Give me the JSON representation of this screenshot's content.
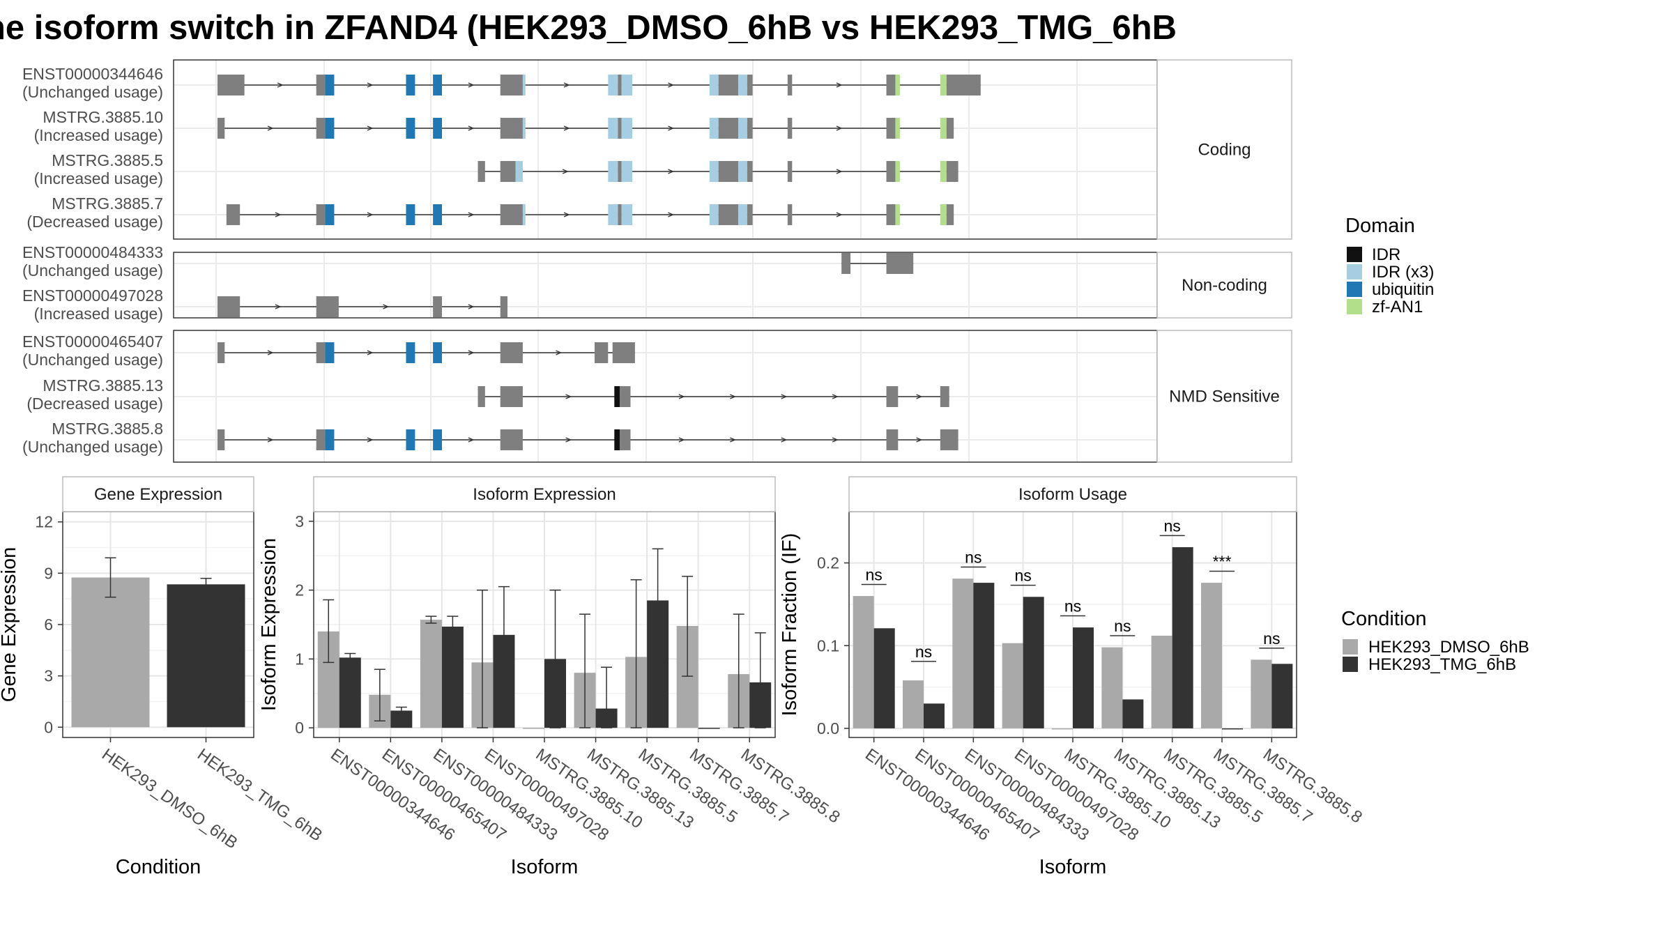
{
  "title": "he isoform switch in ZFAND4 (HEK293_DMSO_6hB vs HEK293_TMG_6hB",
  "colors": {
    "exon": "#7f7f7f",
    "dmso": "#a9a9a9",
    "tmg": "#333333",
    "domains": {
      "IDR": "#111111",
      "IDR (x3)": "#a6cee3",
      "ubiquitin": "#1f78b4",
      "zf-AN1": "#b2df8a"
    }
  },
  "chart_data": [
    {
      "type": "gene-structure",
      "genomic_range": [
        0,
        100
      ],
      "groups": [
        {
          "label": "Coding",
          "transcripts": [
            {
              "id": "ENST00000344646",
              "usage": "(Unchanged usage)",
              "exons": [
                [
                  0,
                  3,
                  "e"
                ],
                [
                  11,
                  12,
                  "e"
                ],
                [
                  12,
                  13,
                  "ubiquitin"
                ],
                [
                  21,
                  22,
                  "ubiquitin"
                ],
                [
                  24,
                  24.3,
                  "ubiquitin"
                ],
                [
                  24.3,
                  25,
                  "ubiquitin"
                ],
                [
                  31.5,
                  34,
                  "e"
                ],
                [
                  34,
                  34.3,
                  "IDR (x3)"
                ],
                [
                  43.5,
                  44.6,
                  "IDR (x3)"
                ],
                [
                  44.6,
                  45,
                  "e"
                ],
                [
                  45,
                  46.2,
                  "IDR (x3)"
                ],
                [
                  54.8,
                  55.8,
                  "IDR (x3)"
                ],
                [
                  55.8,
                  58,
                  "e"
                ],
                [
                  58,
                  59,
                  "IDR (x3)"
                ],
                [
                  59,
                  59.6,
                  "e"
                ],
                [
                  63.5,
                  64,
                  "e"
                ],
                [
                  74.5,
                  75.5,
                  "e"
                ],
                [
                  75.5,
                  76,
                  "zf-AN1"
                ],
                [
                  80.5,
                  81.2,
                  "zf-AN1"
                ],
                [
                  81.2,
                  85,
                  "e"
                ]
              ]
            },
            {
              "id": "MSTRG.3885.10",
              "usage": "(Increased usage)",
              "exons": [
                [
                  0,
                  0.8,
                  "e"
                ],
                [
                  11,
                  12,
                  "e"
                ],
                [
                  12,
                  13,
                  "ubiquitin"
                ],
                [
                  21,
                  22,
                  "ubiquitin"
                ],
                [
                  24,
                  25,
                  "ubiquitin"
                ],
                [
                  31.5,
                  34,
                  "e"
                ],
                [
                  34,
                  34.3,
                  "IDR (x3)"
                ],
                [
                  43.5,
                  44.6,
                  "IDR (x3)"
                ],
                [
                  44.6,
                  45,
                  "e"
                ],
                [
                  45,
                  46.2,
                  "IDR (x3)"
                ],
                [
                  54.8,
                  55.8,
                  "IDR (x3)"
                ],
                [
                  55.8,
                  58,
                  "e"
                ],
                [
                  58,
                  59,
                  "IDR (x3)"
                ],
                [
                  59,
                  59.6,
                  "e"
                ],
                [
                  63.5,
                  64,
                  "e"
                ],
                [
                  74.5,
                  75.5,
                  "e"
                ],
                [
                  75.5,
                  76,
                  "zf-AN1"
                ],
                [
                  80.5,
                  81.2,
                  "zf-AN1"
                ],
                [
                  81.2,
                  82,
                  "e"
                ]
              ]
            },
            {
              "id": "MSTRG.3885.5",
              "usage": "(Increased usage)",
              "exons": [
                [
                  29,
                  29.8,
                  "e"
                ],
                [
                  31.5,
                  33.2,
                  "e"
                ],
                [
                  33.2,
                  34,
                  "IDR (x3)"
                ],
                [
                  43.5,
                  44.6,
                  "IDR (x3)"
                ],
                [
                  44.6,
                  45,
                  "e"
                ],
                [
                  45,
                  46.2,
                  "IDR (x3)"
                ],
                [
                  54.8,
                  55.8,
                  "IDR (x3)"
                ],
                [
                  55.8,
                  58,
                  "e"
                ],
                [
                  58,
                  59,
                  "IDR (x3)"
                ],
                [
                  59,
                  59.6,
                  "e"
                ],
                [
                  63.5,
                  64,
                  "e"
                ],
                [
                  74.5,
                  75.5,
                  "e"
                ],
                [
                  75.5,
                  76,
                  "zf-AN1"
                ],
                [
                  80.5,
                  81.2,
                  "zf-AN1"
                ],
                [
                  81.2,
                  82.5,
                  "e"
                ]
              ]
            },
            {
              "id": "MSTRG.3885.7",
              "usage": "(Decreased usage)",
              "exons": [
                [
                  1,
                  2.5,
                  "e"
                ],
                [
                  11,
                  12,
                  "e"
                ],
                [
                  12,
                  13,
                  "ubiquitin"
                ],
                [
                  21,
                  22,
                  "ubiquitin"
                ],
                [
                  24,
                  25,
                  "ubiquitin"
                ],
                [
                  31.5,
                  34,
                  "e"
                ],
                [
                  34,
                  34.3,
                  "IDR (x3)"
                ],
                [
                  43.5,
                  44.6,
                  "IDR (x3)"
                ],
                [
                  44.6,
                  45,
                  "e"
                ],
                [
                  45,
                  46.2,
                  "IDR (x3)"
                ],
                [
                  54.8,
                  55.8,
                  "IDR (x3)"
                ],
                [
                  55.8,
                  58,
                  "e"
                ],
                [
                  58,
                  59,
                  "IDR (x3)"
                ],
                [
                  59,
                  59.6,
                  "e"
                ],
                [
                  63.5,
                  64,
                  "e"
                ],
                [
                  74.5,
                  75.5,
                  "e"
                ],
                [
                  75.5,
                  76,
                  "zf-AN1"
                ],
                [
                  80.5,
                  81.2,
                  "zf-AN1"
                ],
                [
                  81.2,
                  82,
                  "e"
                ]
              ]
            }
          ]
        },
        {
          "label": "Non-coding",
          "transcripts": [
            {
              "id": "ENST00000484333",
              "usage": "(Unchanged usage)",
              "exons": [
                [
                  69.5,
                  70.5,
                  "e"
                ],
                [
                  74.5,
                  77.5,
                  "e"
                ]
              ]
            },
            {
              "id": "ENST00000497028",
              "usage": "(Increased usage)",
              "exons": [
                [
                  0,
                  2.5,
                  "e"
                ],
                [
                  11,
                  13.5,
                  "e"
                ],
                [
                  24,
                  25,
                  "e"
                ],
                [
                  31.5,
                  32.3,
                  "e"
                ]
              ]
            }
          ]
        },
        {
          "label": "NMD Sensitive",
          "transcripts": [
            {
              "id": "ENST00000465407",
              "usage": "(Unchanged usage)",
              "exons": [
                [
                  0,
                  0.8,
                  "e"
                ],
                [
                  11,
                  12,
                  "e"
                ],
                [
                  12,
                  13,
                  "ubiquitin"
                ],
                [
                  21,
                  22,
                  "ubiquitin"
                ],
                [
                  24,
                  25,
                  "ubiquitin"
                ],
                [
                  31.5,
                  34,
                  "e"
                ],
                [
                  42,
                  43.5,
                  "e"
                ],
                [
                  44,
                  46.5,
                  "e"
                ]
              ]
            },
            {
              "id": "MSTRG.3885.13",
              "usage": "(Decreased usage)",
              "exons": [
                [
                  29,
                  29.8,
                  "e"
                ],
                [
                  31.5,
                  34,
                  "e"
                ],
                [
                  44.2,
                  44.8,
                  "IDR"
                ],
                [
                  44.8,
                  46,
                  "e"
                ],
                [
                  74.5,
                  75.8,
                  "e"
                ],
                [
                  80.5,
                  81.5,
                  "e"
                ]
              ]
            },
            {
              "id": "MSTRG.3885.8",
              "usage": "(Unchanged usage)",
              "exons": [
                [
                  0,
                  0.8,
                  "e"
                ],
                [
                  11,
                  12,
                  "e"
                ],
                [
                  12,
                  13,
                  "ubiquitin"
                ],
                [
                  21,
                  22,
                  "ubiquitin"
                ],
                [
                  24,
                  25,
                  "ubiquitin"
                ],
                [
                  31.5,
                  34,
                  "e"
                ],
                [
                  44.2,
                  44.8,
                  "IDR"
                ],
                [
                  44.8,
                  46,
                  "e"
                ],
                [
                  74.5,
                  75.8,
                  "e"
                ],
                [
                  80.5,
                  82.5,
                  "e"
                ]
              ]
            }
          ]
        }
      ],
      "legend": {
        "title": "Domain",
        "entries": [
          "IDR",
          "IDR (x3)",
          "ubiquitin",
          "zf-AN1"
        ]
      }
    },
    {
      "type": "bar",
      "title": "Gene Expression",
      "xlabel": "Condition",
      "ylabel": "Gene Expression",
      "ylim": [
        -0.6,
        12.6
      ],
      "yticks": [
        0,
        3,
        6,
        9,
        12
      ],
      "categories": [
        "HEK293_DMSO_6hB",
        "HEK293_TMG_6hB"
      ],
      "values": [
        8.75,
        8.35
      ],
      "err_low": [
        7.6,
        8.0
      ],
      "err_high": [
        9.9,
        8.7
      ]
    },
    {
      "type": "bar",
      "title": "Isoform Expression",
      "xlabel": "Isoform",
      "ylabel": "Isoform Expression",
      "ylim": [
        -0.14,
        3.14
      ],
      "yticks": [
        0,
        1,
        2,
        3
      ],
      "categories": [
        "ENST00000344646",
        "ENST00000465407",
        "ENST00000484333",
        "ENST00000497028",
        "MSTRG.3885.10",
        "MSTRG.3885.13",
        "MSTRG.3885.5",
        "MSTRG.3885.7",
        "MSTRG.3885.8"
      ],
      "series": [
        {
          "name": "HEK293_DMSO_6hB",
          "values": [
            1.4,
            0.48,
            1.57,
            0.95,
            0.0,
            0.8,
            1.03,
            1.48,
            0.78
          ],
          "err_low": [
            0.95,
            0.1,
            1.52,
            0.0,
            0.0,
            0.0,
            0.0,
            0.75,
            0.0
          ],
          "err_high": [
            1.86,
            0.85,
            1.62,
            2.0,
            0.0,
            1.65,
            2.15,
            2.2,
            1.65
          ]
        },
        {
          "name": "HEK293_TMG_6hB",
          "values": [
            1.02,
            0.25,
            1.47,
            1.35,
            1.0,
            0.28,
            1.85,
            0.0,
            0.66
          ],
          "err_low": [
            0.97,
            0.2,
            1.32,
            0.65,
            0.0,
            0.0,
            1.1,
            0.0,
            0.0
          ],
          "err_high": [
            1.08,
            0.3,
            1.62,
            2.05,
            2.0,
            0.88,
            2.6,
            0.0,
            1.38
          ]
        }
      ]
    },
    {
      "type": "bar",
      "title": "Isoform Usage",
      "xlabel": "Isoform",
      "ylabel": "Isoform Fraction (IF)",
      "ylim": [
        -0.011,
        0.262
      ],
      "yticks": [
        0.0,
        0.1,
        0.2
      ],
      "ytick_labels": [
        "0.0",
        "0.1",
        "0.2"
      ],
      "categories": [
        "ENST00000344646",
        "ENST00000465407",
        "ENST00000484333",
        "ENST00000497028",
        "MSTRG.3885.10",
        "MSTRG.3885.13",
        "MSTRG.3885.5",
        "MSTRG.3885.7",
        "MSTRG.3885.8"
      ],
      "series": [
        {
          "name": "HEK293_DMSO_6hB",
          "values": [
            0.16,
            0.058,
            0.181,
            0.103,
            0.0,
            0.098,
            0.112,
            0.176,
            0.083
          ]
        },
        {
          "name": "HEK293_TMG_6hB",
          "values": [
            0.121,
            0.03,
            0.176,
            0.159,
            0.122,
            0.035,
            0.219,
            0.0,
            0.078
          ]
        }
      ],
      "significance": [
        "ns",
        "ns",
        "ns",
        "ns",
        "ns",
        "ns",
        "ns",
        "***",
        "ns"
      ],
      "significance_y": [
        0.174,
        0.081,
        0.195,
        0.173,
        0.136,
        0.112,
        0.233,
        0.19,
        0.097
      ]
    }
  ],
  "condition_legend": {
    "title": "Condition",
    "entries": [
      "HEK293_DMSO_6hB",
      "HEK293_TMG_6hB"
    ]
  }
}
